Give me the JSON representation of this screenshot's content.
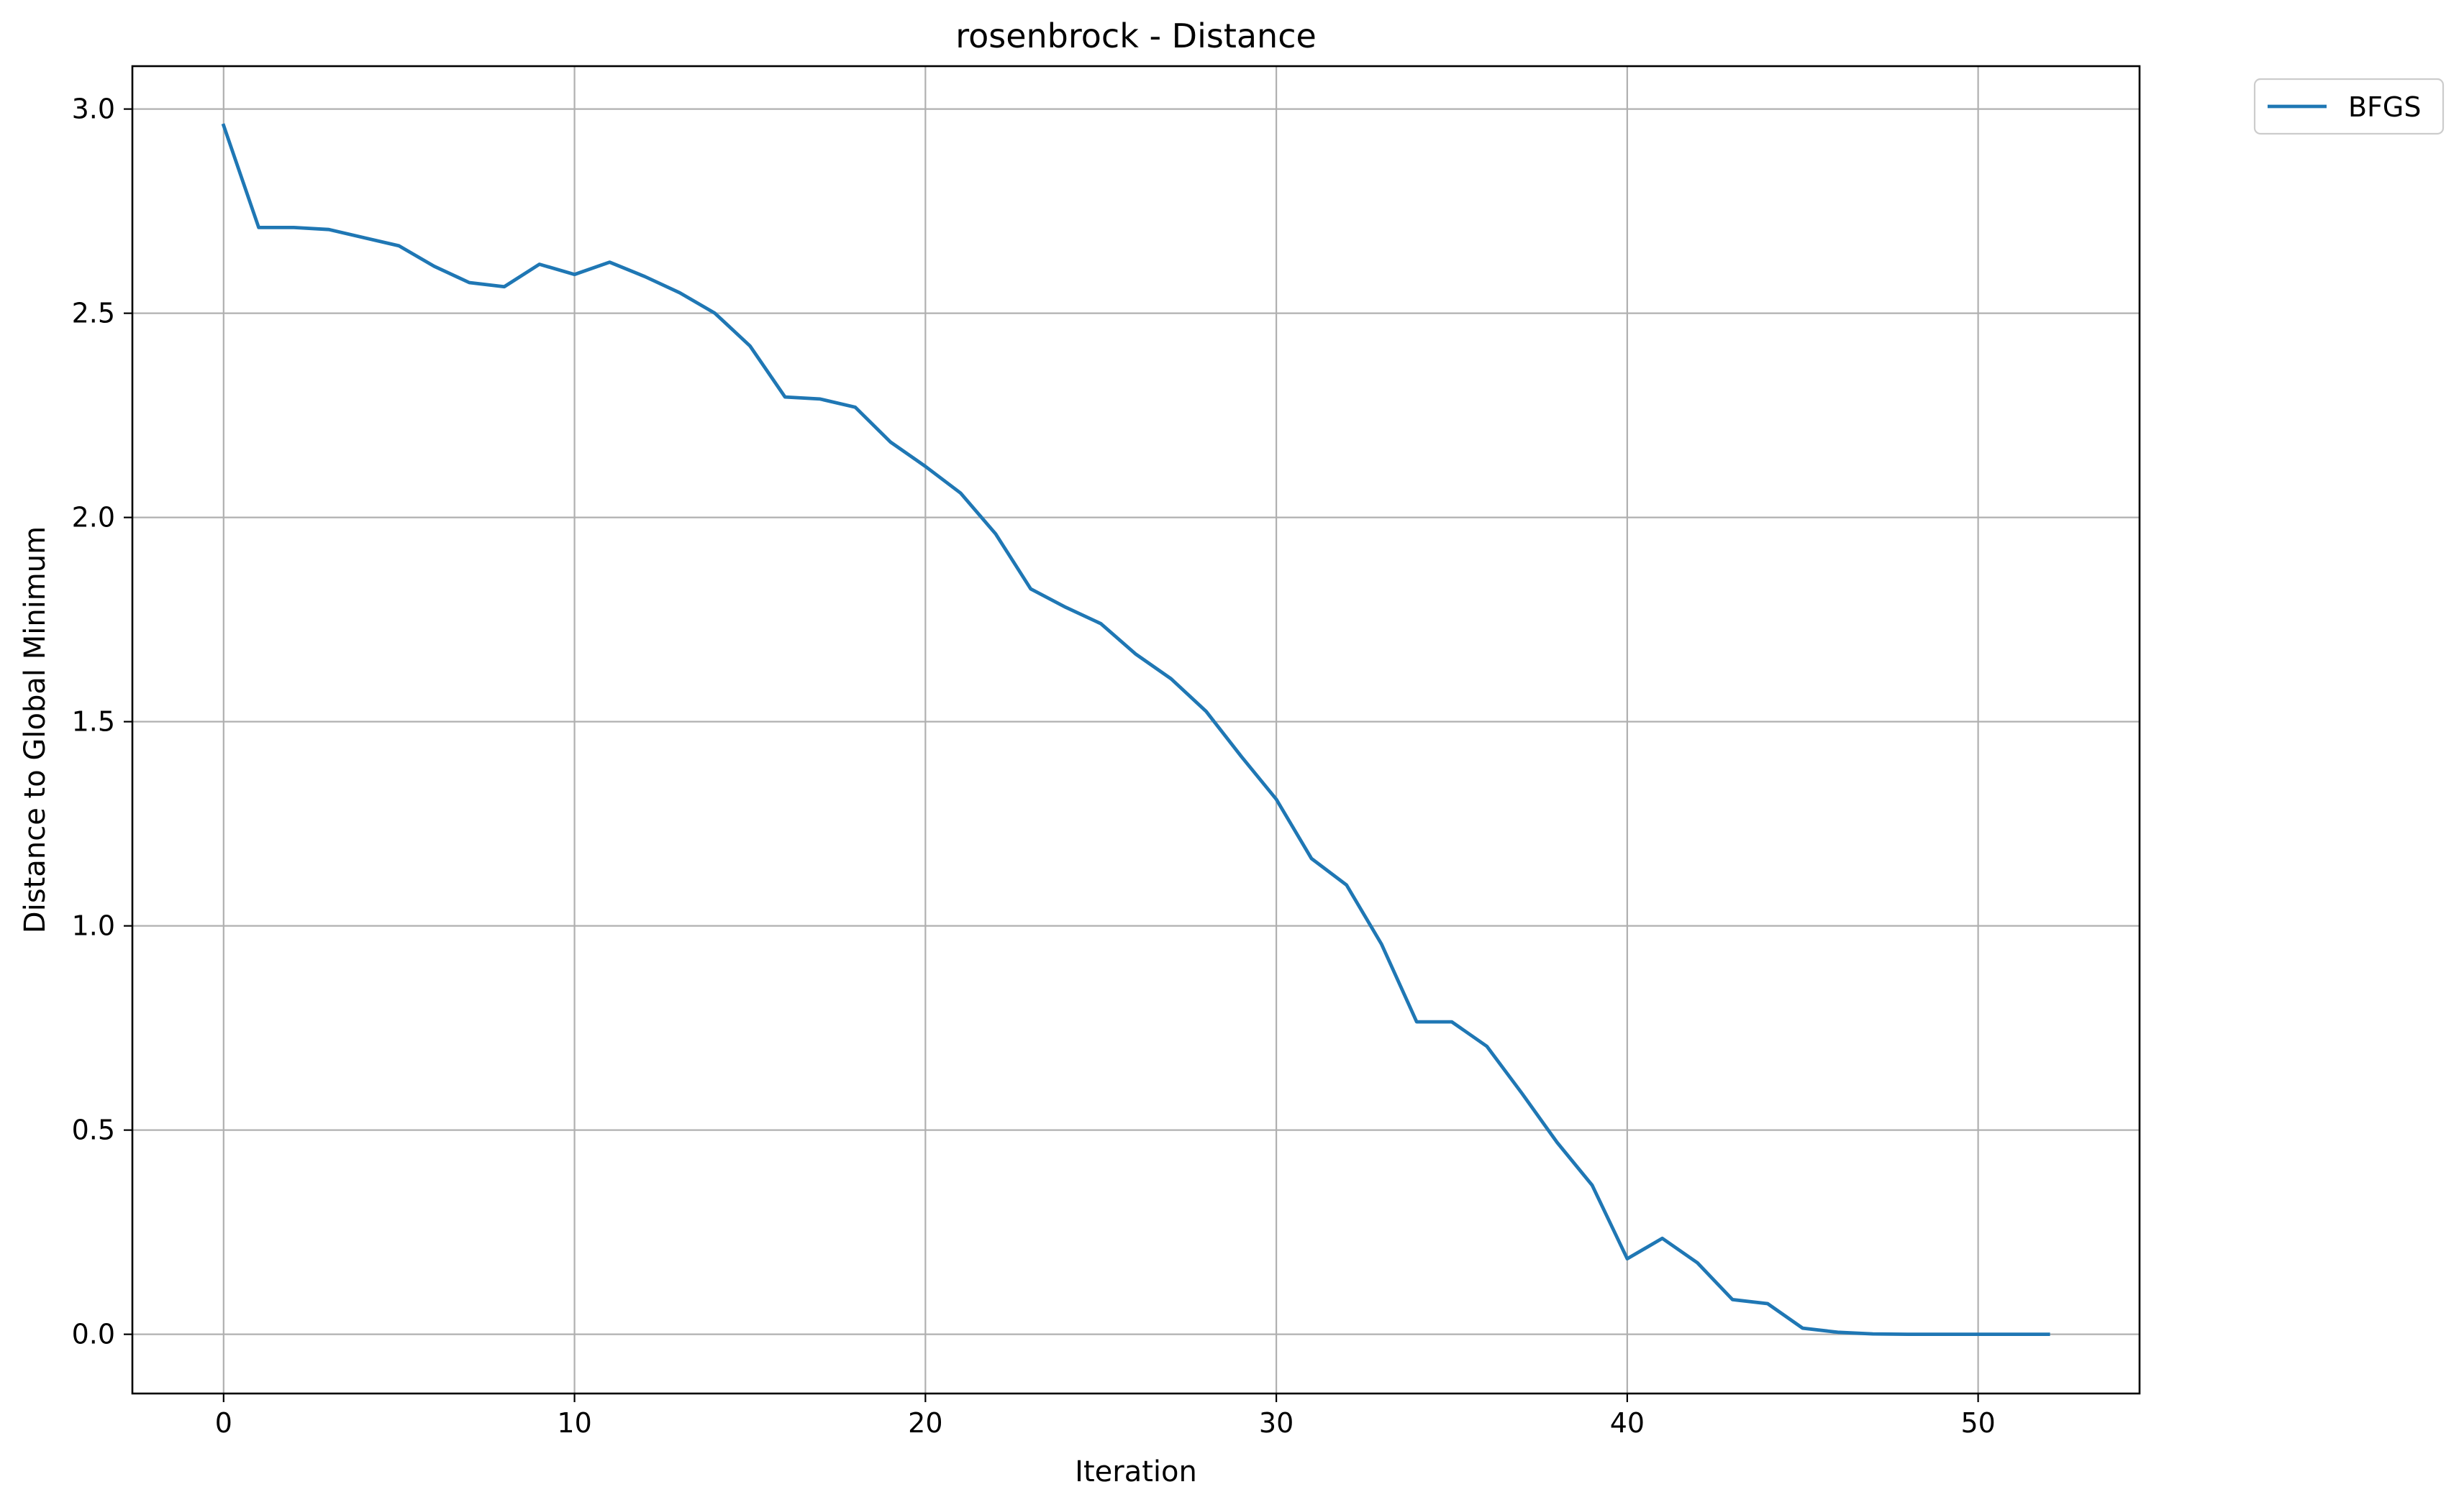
{
  "chart_data": {
    "type": "line",
    "title": "rosenbrock - Distance",
    "xlabel": "Iteration",
    "ylabel": "Distance to Global Minimum",
    "xlim": [
      -2.6,
      54.6
    ],
    "ylim": [
      -0.145,
      3.105
    ],
    "xticks": [
      0,
      10,
      20,
      30,
      40,
      50
    ],
    "xtick_labels": [
      "0",
      "10",
      "20",
      "30",
      "40",
      "50"
    ],
    "yticks": [
      0.0,
      0.5,
      1.0,
      1.5,
      2.0,
      2.5,
      3.0
    ],
    "ytick_labels": [
      "0.0",
      "0.5",
      "1.0",
      "1.5",
      "2.0",
      "2.5",
      "3.0"
    ],
    "grid": true,
    "legend_position": "outside-top-right",
    "series": [
      {
        "name": "BFGS",
        "color": "#1f77b4",
        "x": [
          0,
          1,
          2,
          3,
          4,
          5,
          6,
          7,
          8,
          9,
          10,
          11,
          12,
          13,
          14,
          15,
          16,
          17,
          18,
          19,
          20,
          21,
          22,
          23,
          24,
          25,
          26,
          27,
          28,
          29,
          30,
          31,
          32,
          33,
          34,
          35,
          36,
          37,
          38,
          39,
          40,
          41,
          42,
          43,
          44,
          45,
          46,
          47,
          48,
          49,
          50,
          51,
          52
        ],
        "y": [
          2.96,
          2.71,
          2.71,
          2.705,
          2.685,
          2.665,
          2.615,
          2.575,
          2.565,
          2.62,
          2.595,
          2.625,
          2.59,
          2.55,
          2.5,
          2.42,
          2.295,
          2.29,
          2.27,
          2.185,
          2.125,
          2.06,
          1.96,
          1.825,
          1.78,
          1.74,
          1.665,
          1.605,
          1.525,
          1.415,
          1.31,
          1.165,
          1.1,
          0.955,
          0.765,
          0.765,
          0.705,
          0.59,
          0.47,
          0.365,
          0.185,
          0.235,
          0.175,
          0.085,
          0.075,
          0.015,
          0.005,
          0.001,
          0.0,
          0.0,
          0.0,
          0.0,
          0.0
        ]
      }
    ]
  }
}
